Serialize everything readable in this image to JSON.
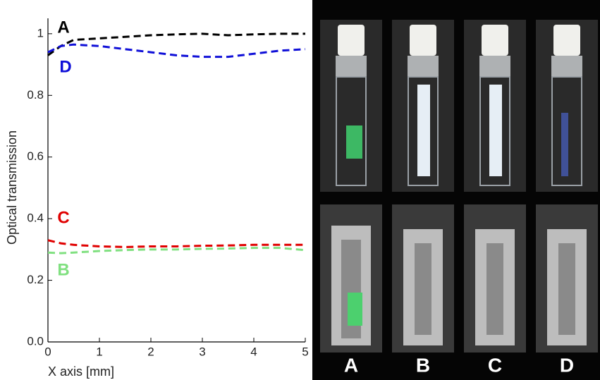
{
  "chart_data": {
    "type": "line",
    "x_label": "X axis [mm]",
    "y_label": "Optical transmission",
    "x": [
      0,
      0.25,
      0.5,
      1,
      1.5,
      2,
      2.5,
      3,
      3.5,
      4,
      4.5,
      5
    ],
    "series": [
      {
        "name": "A",
        "color": "#000000",
        "values": [
          0.93,
          0.96,
          0.98,
          0.985,
          0.99,
          0.995,
          0.998,
          1.0,
          0.995,
          0.998,
          1.0,
          1.0
        ]
      },
      {
        "name": "B",
        "color": "#80e080",
        "values": [
          0.29,
          0.288,
          0.29,
          0.295,
          0.298,
          0.3,
          0.3,
          0.302,
          0.303,
          0.305,
          0.305,
          0.298
        ]
      },
      {
        "name": "C",
        "color": "#e00000",
        "values": [
          0.33,
          0.32,
          0.315,
          0.31,
          0.308,
          0.31,
          0.31,
          0.312,
          0.313,
          0.315,
          0.315,
          0.315
        ]
      },
      {
        "name": "D",
        "color": "#1010d8",
        "values": [
          0.94,
          0.96,
          0.965,
          0.96,
          0.95,
          0.94,
          0.93,
          0.925,
          0.925,
          0.935,
          0.945,
          0.95
        ]
      }
    ],
    "xlim": [
      0,
      5
    ],
    "xticks": [
      0,
      1,
      2,
      3,
      4,
      5
    ],
    "ylim": [
      0,
      1.05
    ],
    "yticks": [
      {
        "value": 0,
        "label": "0.0"
      },
      0.2,
      0.4,
      0.6,
      0.8,
      1
    ],
    "line_style": "dashed"
  }
}
